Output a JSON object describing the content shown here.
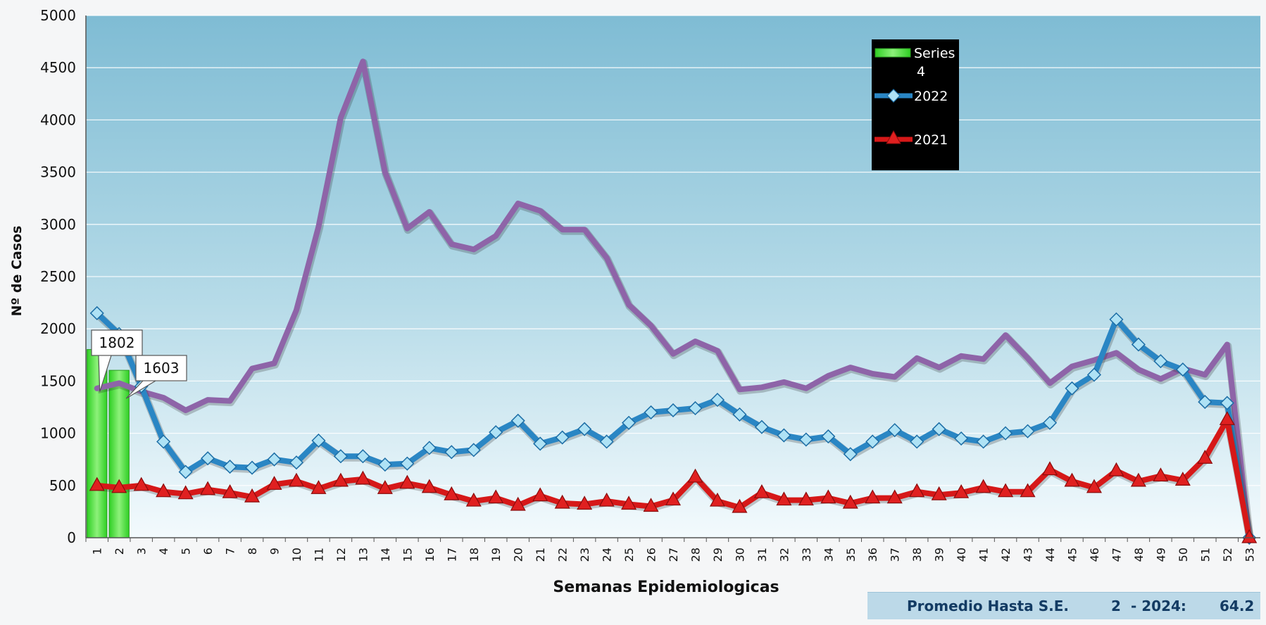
{
  "chart_data": {
    "type": "line",
    "xlabel": "Semanas Epidemiologicas",
    "ylabel": "Nº de Casos",
    "ylim": [
      0,
      5000
    ],
    "yticks": [
      0,
      500,
      1000,
      1500,
      2000,
      2500,
      3000,
      3500,
      4000,
      4500,
      5000
    ],
    "x": [
      1,
      2,
      3,
      4,
      5,
      6,
      7,
      8,
      9,
      10,
      11,
      12,
      13,
      14,
      15,
      16,
      17,
      18,
      19,
      20,
      21,
      22,
      23,
      24,
      25,
      26,
      27,
      28,
      29,
      30,
      31,
      32,
      33,
      34,
      35,
      36,
      37,
      38,
      39,
      40,
      41,
      42,
      43,
      44,
      45,
      46,
      47,
      48,
      49,
      50,
      51,
      52,
      53
    ],
    "legend_position": "top-right",
    "bars": {
      "name": "Series 4",
      "color": "#44d82e",
      "x": [
        1,
        2
      ],
      "values": [
        1802,
        1603
      ],
      "labels": [
        "1802",
        "1603"
      ]
    },
    "series": [
      {
        "color": "#8e64a8",
        "values": [
          1430,
          1480,
          1400,
          1340,
          1220,
          1320,
          1310,
          1620,
          1670,
          2180,
          2980,
          4020,
          4560,
          3500,
          2960,
          3120,
          2810,
          2760,
          2890,
          3200,
          3130,
          2950,
          2950,
          2680,
          2230,
          2030,
          1760,
          1880,
          1790,
          1420,
          1440,
          1490,
          1430,
          1550,
          1630,
          1570,
          1540,
          1720,
          1630,
          1740,
          1710,
          1940,
          1720,
          1480,
          1640,
          1700,
          1770,
          1610,
          1520,
          1620,
          1560,
          1850,
          0
        ]
      },
      {
        "name": "2022",
        "color": "#2a86c4",
        "values": [
          2150,
          1950,
          1450,
          920,
          630,
          760,
          680,
          670,
          750,
          720,
          930,
          780,
          780,
          700,
          710,
          860,
          820,
          840,
          1010,
          1120,
          900,
          960,
          1040,
          920,
          1100,
          1200,
          1220,
          1240,
          1320,
          1180,
          1060,
          980,
          940,
          970,
          800,
          920,
          1030,
          920,
          1040,
          950,
          920,
          1000,
          1020,
          1100,
          1430,
          1560,
          2090,
          1850,
          1690,
          1610,
          1300,
          1290,
          0
        ]
      },
      {
        "name": "2021",
        "color": "#d61818",
        "values": [
          500,
          480,
          500,
          440,
          420,
          460,
          430,
          390,
          510,
          540,
          470,
          540,
          560,
          470,
          520,
          480,
          410,
          350,
          380,
          310,
          400,
          330,
          320,
          350,
          320,
          300,
          360,
          580,
          350,
          290,
          430,
          360,
          360,
          380,
          330,
          380,
          380,
          440,
          410,
          430,
          480,
          440,
          440,
          650,
          540,
          480,
          640,
          540,
          590,
          550,
          760,
          1130,
          0
        ]
      }
    ]
  },
  "footer": {
    "label": "Promedio Hasta S.E.",
    "week": "2",
    "year": "- 2024:",
    "value": "64.2"
  }
}
